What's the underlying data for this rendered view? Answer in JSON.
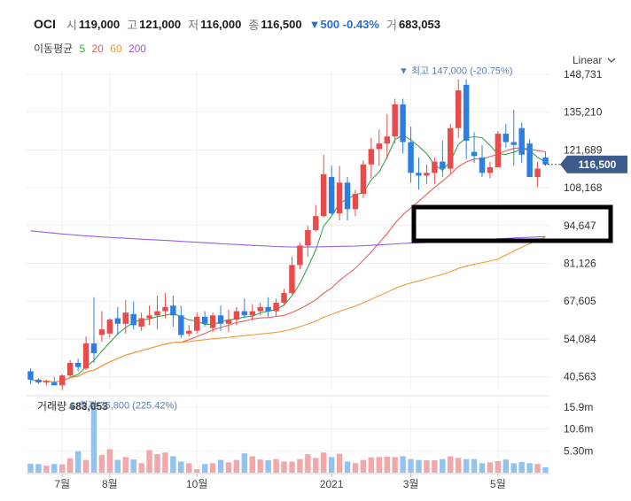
{
  "header": {
    "name": "OCI",
    "open_label": "시",
    "open": "119,000",
    "high_label": "고",
    "high": "121,000",
    "low_label": "저",
    "low": "116,000",
    "close_label": "종",
    "close": "116,500",
    "change": "▼500 -0.43%",
    "volume_label": "거",
    "volume": "683,053"
  },
  "ma": {
    "label": "이동평균",
    "periods": [
      "5",
      "20",
      "60",
      "200"
    ],
    "colors": [
      "#3aa64a",
      "#e8605a",
      "#f29b3a",
      "#9b5de5"
    ]
  },
  "scale": {
    "label": "Linear"
  },
  "colors": {
    "up": "#e94a4a",
    "down": "#2c7fe0",
    "up_bar": "#f2a8aa",
    "down_bar": "#92c2ef",
    "highlight_box": "#000000"
  },
  "chart_data": [
    {
      "type": "candlestick",
      "title": "",
      "ylim": [
        36000,
        150000
      ],
      "y_ticks": [
        "148,731",
        "135,210",
        "121,689",
        "108,168",
        "94,647",
        "81,126",
        "67,605",
        "54,084",
        "40,563"
      ],
      "x_ticks": [
        "7월",
        "8월",
        "10월",
        "2021",
        "3월",
        "5월"
      ],
      "x_tick_index": [
        4,
        10,
        21,
        38,
        48,
        59
      ],
      "current_price": "116,500",
      "annotations": {
        "high": "최고 147,000 (-20.75%)",
        "low": "최저 35,800 (225.42%)"
      },
      "candles": [
        [
          42500,
          43500,
          38000,
          39500
        ],
        [
          39500,
          40000,
          38000,
          38500
        ],
        [
          38500,
          39500,
          37500,
          39000
        ],
        [
          38500,
          40500,
          37500,
          37500
        ],
        [
          37500,
          41500,
          35800,
          41000
        ],
        [
          41000,
          46500,
          40500,
          45500
        ],
        [
          45500,
          47000,
          42500,
          44000
        ],
        [
          43500,
          55000,
          43000,
          52500
        ],
        [
          52500,
          69000,
          45500,
          49000
        ],
        [
          55500,
          64000,
          53000,
          57500
        ],
        [
          56000,
          61500,
          54500,
          61000
        ],
        [
          61500,
          65500,
          55500,
          59500
        ],
        [
          59500,
          68000,
          56000,
          63500
        ],
        [
          63000,
          67500,
          57500,
          59000
        ],
        [
          58500,
          63500,
          57000,
          61500
        ],
        [
          61500,
          66000,
          59000,
          62500
        ],
        [
          62500,
          69500,
          57500,
          64000
        ],
        [
          64000,
          70500,
          61500,
          65500
        ],
        [
          66000,
          69500,
          58500,
          62500
        ],
        [
          62500,
          66000,
          54500,
          55500
        ],
        [
          56000,
          59000,
          55000,
          57000
        ],
        [
          57000,
          63500,
          56000,
          62000
        ],
        [
          62000,
          64000,
          58500,
          59500
        ],
        [
          58000,
          63500,
          56500,
          62500
        ],
        [
          62500,
          66000,
          57000,
          59500
        ],
        [
          59500,
          64500,
          56500,
          61000
        ],
        [
          61000,
          65500,
          59000,
          64000
        ],
        [
          64000,
          68500,
          61500,
          62500
        ],
        [
          62500,
          66500,
          60500,
          64000
        ],
        [
          64000,
          67000,
          62500,
          65500
        ],
        [
          65500,
          69000,
          62000,
          64000
        ],
        [
          64000,
          68500,
          62000,
          67000
        ],
        [
          67000,
          72000,
          66000,
          70500
        ],
        [
          70500,
          83500,
          70000,
          80500
        ],
        [
          80500,
          88500,
          79000,
          87500
        ],
        [
          87500,
          94500,
          83500,
          93000
        ],
        [
          93000,
          102000,
          92500,
          98000
        ],
        [
          98000,
          120000,
          97500,
          113000
        ],
        [
          112000,
          116000,
          98500,
          99000
        ],
        [
          99000,
          116000,
          96500,
          110000
        ],
        [
          110000,
          112000,
          96500,
          100500
        ],
        [
          100500,
          107500,
          98000,
          106000
        ],
        [
          106000,
          118000,
          104500,
          116500
        ],
        [
          116500,
          126000,
          111500,
          122000
        ],
        [
          122000,
          129000,
          116000,
          124000
        ],
        [
          124000,
          134500,
          118500,
          126500
        ],
        [
          126500,
          140000,
          124000,
          138000
        ],
        [
          138000,
          140000,
          120500,
          124500
        ],
        [
          124500,
          130000,
          110000,
          113500
        ],
        [
          113500,
          119000,
          107500,
          112500
        ],
        [
          112500,
          116500,
          109500,
          113500
        ],
        [
          113500,
          119000,
          109500,
          117500
        ],
        [
          117500,
          125000,
          112000,
          115000
        ],
        [
          115000,
          131000,
          113000,
          129500
        ],
        [
          129500,
          147000,
          126000,
          143000
        ],
        [
          145000,
          147000,
          118500,
          125000
        ],
        [
          121000,
          128000,
          117000,
          119500
        ],
        [
          119000,
          123500,
          112000,
          113500
        ],
        [
          113500,
          117500,
          111500,
          115500
        ],
        [
          115500,
          128500,
          115500,
          127500
        ],
        [
          127500,
          131000,
          122500,
          124500
        ],
        [
          124500,
          136000,
          116000,
          123500
        ],
        [
          129500,
          131500,
          117000,
          120000
        ],
        [
          124000,
          125500,
          112000,
          112000
        ],
        [
          112000,
          117500,
          108500,
          115000
        ],
        [
          119000,
          121000,
          116000,
          116500
        ]
      ]
    },
    {
      "type": "bar",
      "title": "거래량",
      "title_value": "683,053",
      "ylim": [
        0,
        17000000
      ],
      "y_ticks": [
        "15.9m",
        "10.6m",
        "5.30m"
      ],
      "y_tick_values": [
        15900000,
        10600000,
        5300000
      ],
      "values": [
        2200000,
        2100000,
        1700000,
        2100000,
        2000000,
        3500000,
        5200000,
        3100000,
        17000000,
        4300000,
        5700000,
        3100000,
        3800000,
        3200000,
        2300000,
        5500000,
        4500000,
        4900000,
        4000000,
        2700000,
        2300000,
        800000,
        2100000,
        2300000,
        3100000,
        2500000,
        3100000,
        4700000,
        4000000,
        3200000,
        3000000,
        3300000,
        2700000,
        2700000,
        3300000,
        4500000,
        3600000,
        4900000,
        3800000,
        4600000,
        2700000,
        2300000,
        3100000,
        3700000,
        3800000,
        3900000,
        3800000,
        4000000,
        3300000,
        3100000,
        3000000,
        3000000,
        3300000,
        4000000,
        3600000,
        3300000,
        3300000,
        2300000,
        2500000,
        2800000,
        3200000,
        2300000,
        2600000,
        2300000,
        2100000,
        1300000
      ]
    }
  ]
}
